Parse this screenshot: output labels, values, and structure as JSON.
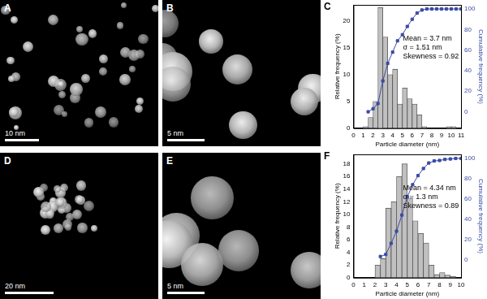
{
  "images": [
    {
      "label": "A",
      "scale_bar": "10 nm"
    },
    {
      "label": "B",
      "scale_bar": "5 nm"
    },
    {
      "label": "D",
      "scale_bar": "20 nm"
    },
    {
      "label": "E",
      "scale_bar": "5 nm"
    }
  ],
  "chart_data": [
    {
      "label": "C",
      "type": "histogram",
      "x_label": "Particle diameter (nm)",
      "y_label": "Relative frequency (%)",
      "y2_label": "Cumulative frequency (%)",
      "bins": [
        1,
        1.5,
        2,
        2.5,
        3,
        3.5,
        4,
        4.5,
        5,
        5.5,
        6,
        6.5,
        7,
        7.5,
        8,
        8.5,
        9,
        9.5,
        10,
        10.5
      ],
      "values": [
        0.3,
        2,
        5,
        22.5,
        17,
        10,
        11,
        4.5,
        7.5,
        5.5,
        4.5,
        2.5,
        0.3,
        0,
        0,
        0,
        0,
        0.3,
        0.3
      ],
      "color": "#c0c0c0",
      "cumulative": {
        "x": [
          1.5,
          2,
          2.5,
          3,
          3.5,
          4,
          4.5,
          5,
          5.5,
          6,
          6.5,
          7,
          7.5,
          8,
          8.5,
          9,
          9.5,
          10,
          10.5,
          11
        ],
        "values": [
          0,
          3,
          8,
          30,
          47,
          58,
          69,
          75,
          83,
          90,
          96,
          99,
          100,
          100,
          100,
          100,
          100,
          100,
          100,
          100
        ],
        "color": "#3b4ba6",
        "marker": "square",
        "axis": "y2"
      },
      "annotations": [
        "Mean = 3.7 nm",
        "σ = 1.51 nm",
        "Skewness = 0.92"
      ],
      "xlim": [
        0,
        11
      ],
      "xticks": [
        0,
        1,
        2,
        3,
        4,
        5,
        6,
        7,
        8,
        9,
        10,
        11
      ],
      "ylim": [
        0,
        23
      ],
      "yticks": [
        0,
        5,
        10,
        15,
        20
      ],
      "y2lim": [
        -16,
        104
      ],
      "y2ticks": [
        0,
        20,
        40,
        60,
        80,
        100
      ],
      "grid": false
    },
    {
      "label": "F",
      "type": "histogram",
      "x_label": "Particle diameter (nm)",
      "y_label": "Relative frequency (%)",
      "y2_label": "Cumulative frequency (%)",
      "bins": [
        2,
        2.5,
        3,
        3.5,
        4,
        4.5,
        5,
        5.5,
        6,
        6.5,
        7,
        7.5,
        8,
        8.5,
        9,
        9.5
      ],
      "values": [
        2,
        3,
        11,
        12,
        16,
        18,
        12.5,
        9,
        7,
        5.5,
        2,
        0.5,
        0.8,
        0.4,
        0.2
      ],
      "color": "#c0c0c0",
      "cumulative": {
        "x": [
          2.5,
          3,
          3.5,
          4,
          4.5,
          5,
          5.5,
          6,
          6.5,
          7,
          7.5,
          8,
          8.5,
          9,
          9.5,
          10
        ],
        "values": [
          3,
          5,
          16,
          28,
          44,
          62,
          74,
          83,
          90,
          95.5,
          97.5,
          98,
          99,
          99.5,
          100,
          100
        ],
        "color": "#3b4ba6",
        "marker": "square",
        "axis": "y2"
      },
      "annotations": [
        "Mean = 4.34 nm",
        "σ = 1.3 nm",
        "Skewness = 0.89"
      ],
      "xlim": [
        0,
        10
      ],
      "xticks": [
        0,
        1,
        2,
        3,
        4,
        5,
        6,
        7,
        8,
        9,
        10
      ],
      "ylim": [
        0,
        19.5
      ],
      "yticks": [
        0,
        2,
        4,
        6,
        8,
        10,
        12,
        14,
        16,
        18
      ],
      "y2lim": [
        -18,
        104
      ],
      "y2ticks": [
        0,
        20,
        40,
        60,
        80,
        100
      ],
      "grid": false
    }
  ]
}
